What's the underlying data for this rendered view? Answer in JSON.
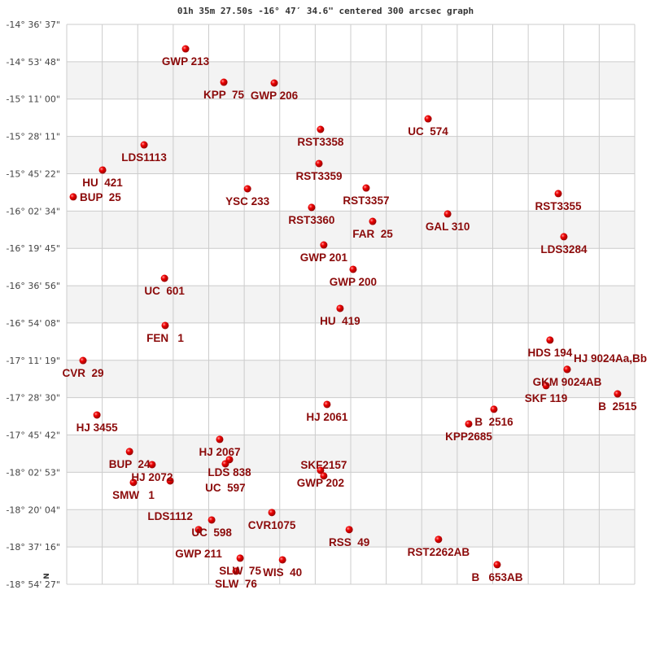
{
  "chart_data": {
    "type": "scatter",
    "title": "01h 35m 27.50s -16° 47′ 34.6\" centered 300 arcsec graph",
    "xlabel": "",
    "ylabel": "",
    "x_units": "arcmin offset from center",
    "y_units": "declination (deg)",
    "xlim": [
      -130.7,
      130.7
    ],
    "ylim": [
      -18.9075,
      -14.6103
    ],
    "grid": true,
    "alternating_band_shading": true,
    "x_grid_divisions": 16,
    "y_tick_labels": [
      "-14° 36' 37\"",
      "-14° 53' 48\"",
      "-15° 11' 00\"",
      "-15° 28' 11\"",
      "-15° 45' 22\"",
      "-16° 02' 34\"",
      "-16° 19' 45\"",
      "-16° 36' 56\"",
      "-16° 54' 08\"",
      "-17° 11' 19\"",
      "-17° 28' 30\"",
      "-17° 45' 42\"",
      "-18° 02' 53\"",
      "-18° 20' 04\"",
      "-18° 37' 16\"",
      "-18° 54' 27\""
    ],
    "north_marker": "N",
    "colors": {
      "point": "#e00000",
      "label": "#8b0a0a",
      "band": "#f3f3f3",
      "grid": "#cccccc"
    },
    "points": [
      {
        "label": "GWP 213",
        "x": -76.0,
        "y": -14.798
      },
      {
        "label": "KPP  75",
        "x": -58.4,
        "y": -15.054
      },
      {
        "label": "GWP 206",
        "x": -35.2,
        "y": -15.06
      },
      {
        "label": "UC  574",
        "x": 35.6,
        "y": -15.335
      },
      {
        "label": "RST3358",
        "x": -13.9,
        "y": -15.416
      },
      {
        "label": "LDS1113",
        "x": -95.1,
        "y": -15.535
      },
      {
        "label": "RST3359",
        "x": -14.6,
        "y": -15.678
      },
      {
        "label": "HU  421",
        "x": -114.2,
        "y": -15.728
      },
      {
        "label": "RST3357",
        "x": 7.1,
        "y": -15.866
      },
      {
        "label": "YSC 233",
        "x": -47.5,
        "y": -15.872
      },
      {
        "label": "RST3355",
        "x": 95.5,
        "y": -15.909
      },
      {
        "label": "BUP  25",
        "x": -127.7,
        "y": -15.934
      },
      {
        "label": "RST3360",
        "x": -18.0,
        "y": -16.015
      },
      {
        "label": "GAL 310",
        "x": 44.6,
        "y": -16.065
      },
      {
        "label": "FAR  25",
        "x": 10.1,
        "y": -16.122
      },
      {
        "label": "LDS3284",
        "x": 98.1,
        "y": -16.24
      },
      {
        "label": "GWP 201",
        "x": -12.4,
        "y": -16.303
      },
      {
        "label": "GWP 200",
        "x": 1.1,
        "y": -16.49
      },
      {
        "label": "UC  601",
        "x": -85.7,
        "y": -16.559
      },
      {
        "label": "HU  419",
        "x": -4.9,
        "y": -16.79
      },
      {
        "label": "FEN   1",
        "x": -85.4,
        "y": -16.921
      },
      {
        "label": "HDS 194",
        "x": 91.7,
        "y": -17.033
      },
      {
        "label": "CVR  29",
        "x": -123.2,
        "y": -17.19
      },
      {
        "label": "GKM 9024AB",
        "x": 99.6,
        "y": -17.258
      },
      {
        "label": "HJ 9024Aa,Bb",
        "x": 99.6,
        "y": -17.258
      },
      {
        "label": "SKF 119",
        "x": 89.9,
        "y": -17.383
      },
      {
        "label": "B  2515",
        "x": 122.8,
        "y": -17.446
      },
      {
        "label": "HJ 2061",
        "x": -10.9,
        "y": -17.527
      },
      {
        "label": "B  2516",
        "x": 65.9,
        "y": -17.564
      },
      {
        "label": "HJ 3455",
        "x": -116.8,
        "y": -17.608
      },
      {
        "label": "KPP2685",
        "x": 54.3,
        "y": -17.677
      },
      {
        "label": "HJ 2067",
        "x": -60.3,
        "y": -17.795
      },
      {
        "label": "BUP  24",
        "x": -101.8,
        "y": -17.889
      },
      {
        "label": "LDS 838",
        "x": -55.8,
        "y": -17.951
      },
      {
        "label": "UC  597",
        "x": -57.7,
        "y": -17.983
      },
      {
        "label": "HJ 2072",
        "x": -91.4,
        "y": -17.989
      },
      {
        "label": "GWP 202",
        "x": -13.9,
        "y": -18.033
      },
      {
        "label": "SKF2157",
        "x": -12.4,
        "y": -18.076
      },
      {
        "label": "SMW   1",
        "x": -100.0,
        "y": -18.126
      },
      {
        "label": "LDS1112",
        "x": -83.1,
        "y": -18.114
      },
      {
        "label": "CVR1075",
        "x": -36.3,
        "y": -18.357
      },
      {
        "label": "UC  598",
        "x": -64.0,
        "y": -18.414
      },
      {
        "label": "GWP 211",
        "x": -70.0,
        "y": -18.488
      },
      {
        "label": "RSS  49",
        "x": -0.7,
        "y": -18.488
      },
      {
        "label": "RST2262AB",
        "x": 40.4,
        "y": -18.563
      },
      {
        "label": "SLW  75",
        "x": -50.9,
        "y": -18.707
      },
      {
        "label": "WIS  40",
        "x": -31.4,
        "y": -18.72
      },
      {
        "label": "B   653AB",
        "x": 67.4,
        "y": -18.757
      },
      {
        "label": "SLW  76",
        "x": -52.8,
        "y": -18.807
      }
    ]
  }
}
